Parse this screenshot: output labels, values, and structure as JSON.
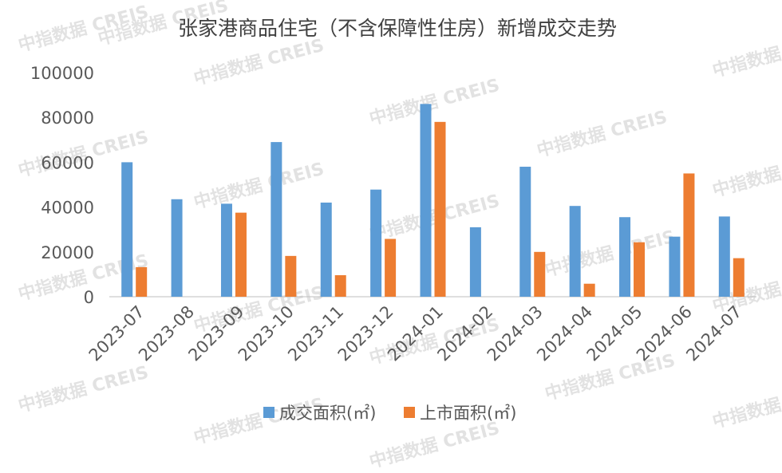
{
  "watermark_text": "中指数据 CREIS",
  "chart_data": {
    "type": "bar",
    "title": "张家港商品住宅（不含保障性住房）新增成交走势",
    "categories": [
      "2023-07",
      "2023-08",
      "2023-09",
      "2023-10",
      "2023-11",
      "2023-12",
      "2024-01",
      "2024-02",
      "2024-03",
      "2024-04",
      "2024-05",
      "2024-06",
      "2024-07"
    ],
    "series": [
      {
        "name": "成交面积(㎡)",
        "color": "#5b9bd5",
        "values": [
          60000,
          43500,
          41500,
          69000,
          42000,
          47800,
          86000,
          31000,
          58000,
          40500,
          35500,
          26800,
          35800
        ]
      },
      {
        "name": "上市面积(㎡)",
        "color": "#ed7d31",
        "values": [
          13200,
          null,
          37500,
          18200,
          9600,
          25800,
          78000,
          null,
          20000,
          5800,
          24300,
          55000,
          17200
        ]
      }
    ],
    "ylim": [
      0,
      100000
    ],
    "yticks": [
      0,
      20000,
      40000,
      60000,
      80000,
      100000
    ],
    "xlabel": "",
    "ylabel": "",
    "grid": false,
    "legend": "bottom"
  }
}
